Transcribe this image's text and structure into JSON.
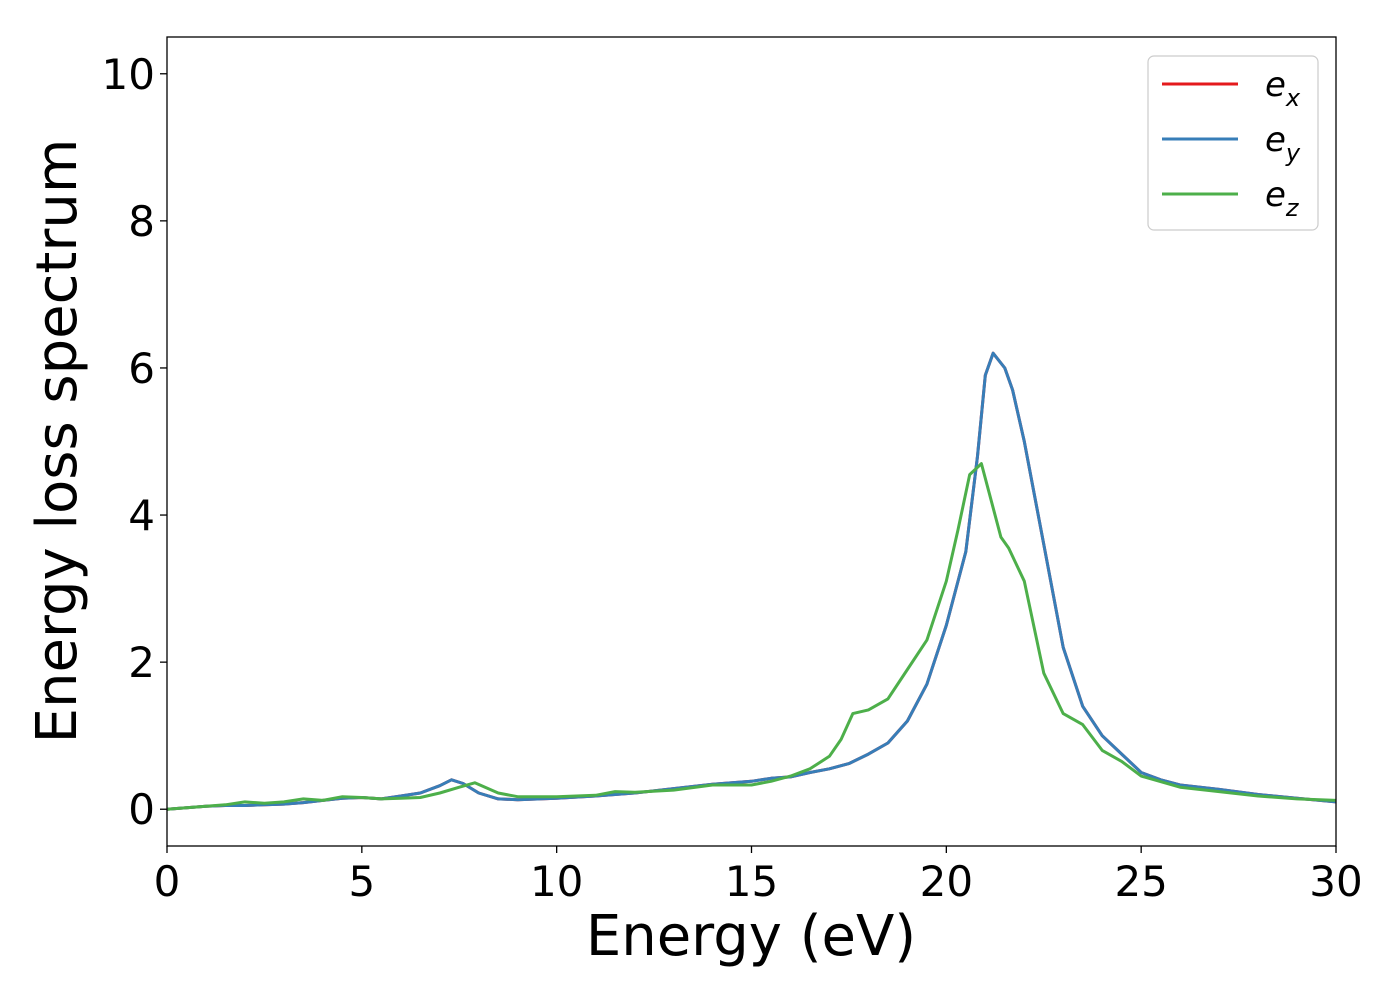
{
  "chart_data": {
    "type": "line",
    "title": "",
    "xlabel": "Energy (eV)",
    "ylabel": "Energy loss spectrum",
    "xlim": [
      0,
      30
    ],
    "ylim": [
      -0.5,
      10.5
    ],
    "x_ticks": [
      0,
      5,
      10,
      15,
      20,
      25,
      30
    ],
    "y_ticks": [
      0,
      2,
      4,
      6,
      8,
      10
    ],
    "x_tick_labels": [
      "0",
      "5",
      "10",
      "15",
      "20",
      "25",
      "30"
    ],
    "y_tick_labels": [
      "0",
      "2",
      "4",
      "6",
      "8",
      "10"
    ],
    "grid": false,
    "legend_position": "top-right",
    "series": [
      {
        "name": "e",
        "subscript": "x",
        "color": "#e41a1c",
        "x": [
          0,
          0.5,
          1,
          1.5,
          2,
          2.5,
          3,
          3.5,
          4,
          4.5,
          5,
          5.5,
          6,
          6.5,
          7,
          7.3,
          7.6,
          8,
          8.5,
          9,
          10,
          11,
          12,
          13,
          14,
          15,
          15.5,
          16,
          16.5,
          17,
          17.5,
          18,
          18.5,
          19,
          19.5,
          20,
          20.5,
          20.8,
          21,
          21.2,
          21.5,
          21.7,
          22,
          22.5,
          23,
          23.5,
          24,
          24.5,
          25,
          25.5,
          26,
          27,
          28,
          29,
          30
        ],
        "y": [
          0.0,
          0.02,
          0.04,
          0.05,
          0.05,
          0.06,
          0.07,
          0.09,
          0.12,
          0.15,
          0.16,
          0.14,
          0.18,
          0.22,
          0.32,
          0.4,
          0.35,
          0.22,
          0.14,
          0.13,
          0.15,
          0.18,
          0.22,
          0.28,
          0.34,
          0.38,
          0.42,
          0.44,
          0.5,
          0.55,
          0.62,
          0.75,
          0.9,
          1.2,
          1.7,
          2.5,
          3.5,
          4.8,
          5.9,
          6.2,
          6.0,
          5.7,
          5.0,
          3.6,
          2.2,
          1.4,
          1.0,
          0.75,
          0.5,
          0.4,
          0.33,
          0.27,
          0.2,
          0.15,
          0.1
        ]
      },
      {
        "name": "e",
        "subscript": "y",
        "color": "#377eb8",
        "x": [
          0,
          0.5,
          1,
          1.5,
          2,
          2.5,
          3,
          3.5,
          4,
          4.5,
          5,
          5.5,
          6,
          6.5,
          7,
          7.3,
          7.6,
          8,
          8.5,
          9,
          10,
          11,
          12,
          13,
          14,
          15,
          15.5,
          16,
          16.5,
          17,
          17.5,
          18,
          18.5,
          19,
          19.5,
          20,
          20.5,
          20.8,
          21,
          21.2,
          21.5,
          21.7,
          22,
          22.5,
          23,
          23.5,
          24,
          24.5,
          25,
          25.5,
          26,
          27,
          28,
          29,
          30
        ],
        "y": [
          0.0,
          0.02,
          0.04,
          0.05,
          0.05,
          0.06,
          0.07,
          0.09,
          0.12,
          0.15,
          0.16,
          0.14,
          0.18,
          0.22,
          0.32,
          0.4,
          0.35,
          0.22,
          0.14,
          0.13,
          0.15,
          0.18,
          0.22,
          0.28,
          0.34,
          0.38,
          0.42,
          0.44,
          0.5,
          0.55,
          0.62,
          0.75,
          0.9,
          1.2,
          1.7,
          2.5,
          3.5,
          4.8,
          5.9,
          6.2,
          6.0,
          5.7,
          5.0,
          3.6,
          2.2,
          1.4,
          1.0,
          0.75,
          0.5,
          0.4,
          0.33,
          0.27,
          0.2,
          0.15,
          0.1
        ]
      },
      {
        "name": "e",
        "subscript": "z",
        "color": "#4daf4a",
        "x": [
          0,
          0.5,
          1,
          1.5,
          2,
          2.5,
          3,
          3.5,
          4,
          4.5,
          5,
          5.5,
          6,
          6.5,
          7,
          7.5,
          7.9,
          8.5,
          9,
          10,
          11,
          11.5,
          12,
          13,
          14,
          15,
          15.5,
          16,
          16.5,
          17,
          17.3,
          17.6,
          18,
          18.5,
          19,
          19.5,
          20,
          20.3,
          20.6,
          20.9,
          21.1,
          21.4,
          21.6,
          22,
          22.5,
          23,
          23.5,
          24,
          24.5,
          25,
          26,
          27,
          28,
          29,
          30
        ],
        "y": [
          0.0,
          0.02,
          0.04,
          0.06,
          0.1,
          0.08,
          0.1,
          0.14,
          0.12,
          0.17,
          0.16,
          0.14,
          0.15,
          0.16,
          0.22,
          0.3,
          0.36,
          0.22,
          0.17,
          0.17,
          0.19,
          0.24,
          0.23,
          0.26,
          0.33,
          0.33,
          0.38,
          0.45,
          0.55,
          0.72,
          0.95,
          1.3,
          1.35,
          1.5,
          1.9,
          2.3,
          3.1,
          3.8,
          4.55,
          4.7,
          4.3,
          3.7,
          3.55,
          3.1,
          1.85,
          1.3,
          1.15,
          0.8,
          0.65,
          0.45,
          0.3,
          0.24,
          0.18,
          0.14,
          0.12
        ]
      }
    ]
  }
}
